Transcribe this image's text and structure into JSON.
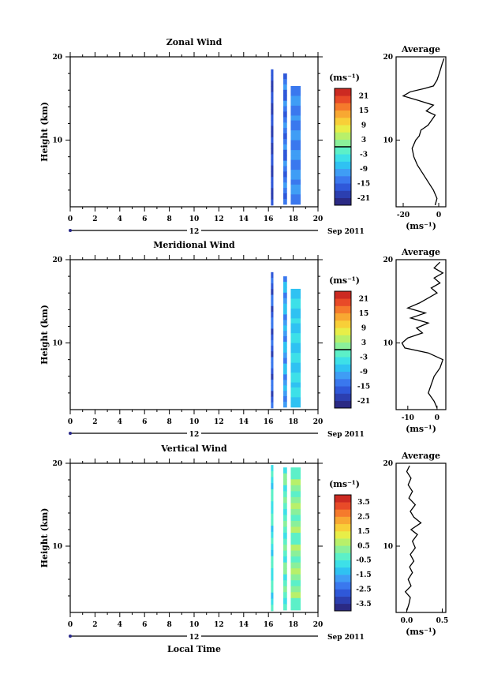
{
  "chart_data": [
    {
      "type": "heatmap",
      "title": "Zonal Wind",
      "ylabel": "Height (km)",
      "ylim": [
        2,
        20
      ],
      "xlim": [
        0,
        20
      ],
      "xticks": [
        "0",
        "2",
        "4",
        "6",
        "8",
        "10",
        "12",
        "14",
        "16",
        "18",
        "20"
      ],
      "yticks": [
        "10",
        "20"
      ],
      "date_label": "12",
      "month_label": "Sep 2011",
      "colorbar": {
        "unit": "(ms⁻¹)",
        "ticks": [
          "21",
          "15",
          "9",
          "3",
          "-3",
          "-9",
          "-15",
          "-21"
        ],
        "range": [
          -24,
          24
        ],
        "zero_line": true
      },
      "columns": [
        {
          "x0": 16.2,
          "x1": 16.4,
          "ymin": 2.2,
          "ymax": 18.5,
          "avg_value": -18
        },
        {
          "x0": 17.2,
          "x1": 17.5,
          "ymin": 2.3,
          "ymax": 18.0,
          "avg_value": -14
        },
        {
          "x0": 17.8,
          "x1": 18.6,
          "ymin": 2.3,
          "ymax": 16.5,
          "avg_value": -12
        }
      ],
      "average": {
        "title": "Average",
        "xlabel": "(ms⁻¹)",
        "xticks": [
          "-20",
          "0"
        ],
        "xlim": [
          -24,
          4
        ],
        "profile": [
          [
            -2,
            2.2
          ],
          [
            -1,
            3
          ],
          [
            -3,
            4
          ],
          [
            -6,
            5
          ],
          [
            -9,
            6
          ],
          [
            -12,
            7
          ],
          [
            -14,
            8
          ],
          [
            -15,
            9
          ],
          [
            -13,
            10
          ],
          [
            -11,
            10.5
          ],
          [
            -10,
            11.2
          ],
          [
            -6,
            11.8
          ],
          [
            -4,
            12.4
          ],
          [
            -2,
            13
          ],
          [
            -7,
            13.5
          ],
          [
            -3,
            14.2
          ],
          [
            -12,
            14.8
          ],
          [
            -20,
            15.3
          ],
          [
            -16,
            15.8
          ],
          [
            -8,
            16.2
          ],
          [
            -3,
            16.5
          ],
          [
            -1,
            17.2
          ],
          [
            0,
            17.8
          ],
          [
            1,
            18.5
          ],
          [
            2,
            19.2
          ],
          [
            3,
            19.8
          ]
        ]
      }
    },
    {
      "type": "heatmap",
      "title": "Meridional Wind",
      "ylabel": "Height (km)",
      "ylim": [
        2,
        20
      ],
      "xlim": [
        0,
        20
      ],
      "xticks": [
        "0",
        "2",
        "4",
        "6",
        "8",
        "10",
        "12",
        "14",
        "16",
        "18",
        "20"
      ],
      "yticks": [
        "10",
        "20"
      ],
      "date_label": "12",
      "month_label": "Sep 2011",
      "colorbar": {
        "unit": "(ms⁻¹)",
        "ticks": [
          "21",
          "15",
          "9",
          "3",
          "-3",
          "-9",
          "-15",
          "-21"
        ],
        "range": [
          -24,
          24
        ],
        "zero_line": true
      },
      "columns": [
        {
          "x0": 16.2,
          "x1": 16.4,
          "ymin": 2.2,
          "ymax": 18.5,
          "avg_value": -16
        },
        {
          "x0": 17.2,
          "x1": 17.5,
          "ymin": 2.3,
          "ymax": 18.0,
          "avg_value": -10
        },
        {
          "x0": 17.8,
          "x1": 18.6,
          "ymin": 2.3,
          "ymax": 16.5,
          "avg_value": -6
        }
      ],
      "average": {
        "title": "Average",
        "xlabel": "(ms⁻¹)",
        "xticks": [
          "-10",
          "0"
        ],
        "xlim": [
          -14,
          3
        ],
        "profile": [
          [
            0,
            2.2
          ],
          [
            -1,
            3
          ],
          [
            -3,
            4
          ],
          [
            -2,
            5
          ],
          [
            -1,
            6
          ],
          [
            1,
            7
          ],
          [
            2,
            8
          ],
          [
            -3,
            8.8
          ],
          [
            -11,
            9.4
          ],
          [
            -12,
            10
          ],
          [
            -10,
            10.6
          ],
          [
            -5,
            11.2
          ],
          [
            -7,
            11.8
          ],
          [
            -3,
            12.4
          ],
          [
            -9,
            13
          ],
          [
            -4,
            13.6
          ],
          [
            -10,
            14.2
          ],
          [
            -6,
            14.8
          ],
          [
            -3,
            15.4
          ],
          [
            0,
            16
          ],
          [
            -2,
            16.6
          ],
          [
            1,
            17.2
          ],
          [
            -1,
            17.8
          ],
          [
            2,
            18.4
          ],
          [
            -1,
            19
          ],
          [
            1,
            19.7
          ]
        ]
      }
    },
    {
      "type": "heatmap",
      "title": "Vertical Wind",
      "xlabel": "Local Time",
      "ylabel": "Height (km)",
      "ylim": [
        2,
        20
      ],
      "xlim": [
        0,
        20
      ],
      "xticks": [
        "0",
        "2",
        "4",
        "6",
        "8",
        "10",
        "12",
        "14",
        "16",
        "18",
        "20"
      ],
      "yticks": [
        "10",
        "20"
      ],
      "date_label": "12",
      "month_label": "Sep 2011",
      "colorbar": {
        "unit": "(ms⁻¹)",
        "ticks": [
          "3.5",
          "2.5",
          "1.5",
          "0.5",
          "-0.5",
          "-1.5",
          "-2.5",
          "-3.5"
        ],
        "range": [
          -4,
          4
        ],
        "zero_line": false
      },
      "columns": [
        {
          "x0": 16.2,
          "x1": 16.4,
          "ymin": 2.2,
          "ymax": 19.8,
          "avg_value": -0.6
        },
        {
          "x0": 17.2,
          "x1": 17.5,
          "ymin": 2.3,
          "ymax": 19.5,
          "avg_value": -0.2
        },
        {
          "x0": 17.8,
          "x1": 18.6,
          "ymin": 2.3,
          "ymax": 19.5,
          "avg_value": 0.2
        }
      ],
      "average": {
        "title": "Average",
        "xlabel": "(ms⁻¹)",
        "xticks": [
          "0.0",
          "0.5"
        ],
        "xlim": [
          -0.15,
          0.55
        ],
        "profile": [
          [
            0.0,
            2.2
          ],
          [
            0.03,
            3
          ],
          [
            0.05,
            3.8
          ],
          [
            -0.02,
            4.5
          ],
          [
            0.06,
            5.2
          ],
          [
            0.02,
            6
          ],
          [
            0.08,
            6.8
          ],
          [
            0.04,
            7.5
          ],
          [
            0.1,
            8.2
          ],
          [
            0.05,
            9
          ],
          [
            0.12,
            9.8
          ],
          [
            0.08,
            10.6
          ],
          [
            0.15,
            11.4
          ],
          [
            0.06,
            12
          ],
          [
            0.2,
            12.8
          ],
          [
            0.1,
            13.5
          ],
          [
            0.05,
            14.2
          ],
          [
            0.12,
            15
          ],
          [
            0.03,
            15.8
          ],
          [
            0.08,
            16.6
          ],
          [
            0.02,
            17.4
          ],
          [
            0.06,
            18.2
          ],
          [
            0.0,
            19
          ],
          [
            0.04,
            19.7
          ]
        ]
      }
    }
  ]
}
